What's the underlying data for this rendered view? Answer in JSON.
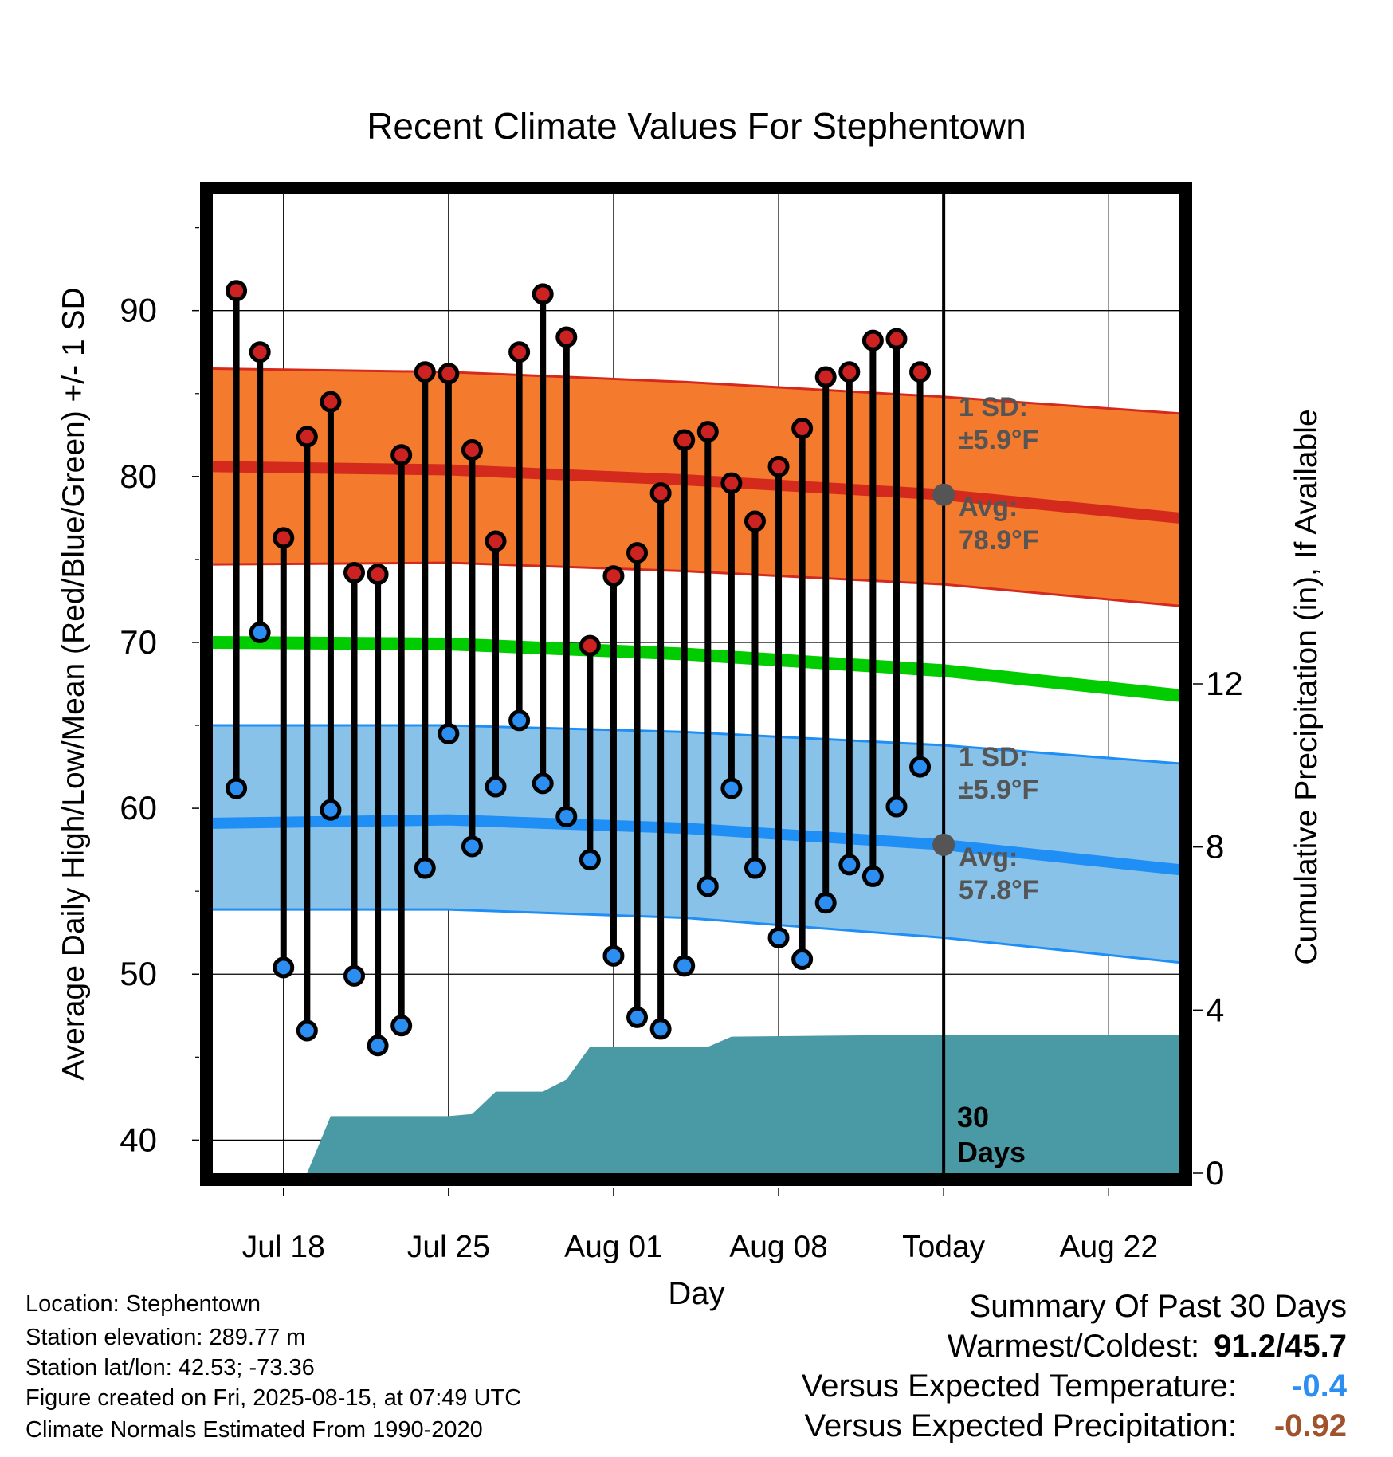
{
  "chart_data": {
    "type": "line",
    "title": "Recent Climate Values For Stephentown",
    "xlabel": "Day",
    "ylabel": "Average Daily High/Low/Mean (Red/Blue/Green) +/- 1 SD",
    "ylabel_right": "Cumulative Precipitation (in), If Available",
    "x_range": [
      "2025-07-15",
      "2025-08-25"
    ],
    "ylim": [
      38,
      97
    ],
    "ylim_right": [
      0,
      24
    ],
    "x_tick_labels": [
      {
        "date": "2025-07-18",
        "label": "Jul 18"
      },
      {
        "date": "2025-07-25",
        "label": "Jul 25"
      },
      {
        "date": "2025-08-01",
        "label": "Aug 01"
      },
      {
        "date": "2025-08-08",
        "label": "Aug 08"
      },
      {
        "date": "2025-08-15",
        "label": "Today"
      },
      {
        "date": "2025-08-22",
        "label": "Aug 22"
      }
    ],
    "y_ticks": [
      40,
      50,
      60,
      70,
      80,
      90
    ],
    "y_ticks_right": [
      0,
      4,
      8,
      12
    ],
    "grid": true,
    "daily_observations": {
      "dates": [
        "2025-07-16",
        "2025-07-17",
        "2025-07-18",
        "2025-07-19",
        "2025-07-20",
        "2025-07-21",
        "2025-07-22",
        "2025-07-23",
        "2025-07-24",
        "2025-07-25",
        "2025-07-26",
        "2025-07-27",
        "2025-07-28",
        "2025-07-29",
        "2025-07-30",
        "2025-07-31",
        "2025-08-01",
        "2025-08-02",
        "2025-08-03",
        "2025-08-04",
        "2025-08-05",
        "2025-08-06",
        "2025-08-07",
        "2025-08-08",
        "2025-08-09",
        "2025-08-10",
        "2025-08-11",
        "2025-08-12",
        "2025-08-13",
        "2025-08-14"
      ],
      "high": [
        91.2,
        87.5,
        76.3,
        82.4,
        84.5,
        74.2,
        74.1,
        81.3,
        86.3,
        86.2,
        81.6,
        76.1,
        87.5,
        91.0,
        88.4,
        69.8,
        74.0,
        75.4,
        79.0,
        82.2,
        82.7,
        79.6,
        77.3,
        80.6,
        82.9,
        86.0,
        86.3,
        88.2,
        88.3,
        86.3
      ],
      "low": [
        61.2,
        70.6,
        50.4,
        46.6,
        59.9,
        49.9,
        45.7,
        46.9,
        56.4,
        64.5,
        57.7,
        61.3,
        65.3,
        61.5,
        59.5,
        56.9,
        51.1,
        47.4,
        46.7,
        50.5,
        55.3,
        61.2,
        56.4,
        52.2,
        50.9,
        54.3,
        56.6,
        55.9,
        60.1,
        62.5
      ],
      "high_color": "#cc2222",
      "low_color": "#2b8ef0"
    },
    "normal_high": {
      "dates": [
        "2025-07-15",
        "2025-07-25",
        "2025-08-04",
        "2025-08-15",
        "2025-08-25"
      ],
      "avg": [
        80.6,
        80.4,
        79.8,
        78.9,
        77.5
      ],
      "upper": [
        86.5,
        86.3,
        85.7,
        84.8,
        83.8
      ],
      "lower": [
        74.7,
        74.8,
        74.3,
        73.5,
        72.2
      ],
      "band_color": "#f47a2e",
      "line_color": "#d42a1e"
    },
    "normal_low": {
      "dates": [
        "2025-07-15",
        "2025-07-25",
        "2025-08-04",
        "2025-08-15",
        "2025-08-25"
      ],
      "avg": [
        59.1,
        59.3,
        58.8,
        57.8,
        56.3
      ],
      "upper": [
        65.0,
        65.0,
        64.6,
        63.8,
        62.7
      ],
      "lower": [
        53.9,
        53.9,
        53.4,
        52.2,
        50.7
      ],
      "band_color": "#88c2e8",
      "line_color": "#1f8ff5"
    },
    "normal_mean": {
      "dates": [
        "2025-07-15",
        "2025-07-25",
        "2025-08-04",
        "2025-08-15",
        "2025-08-25"
      ],
      "values": [
        70.0,
        69.9,
        69.3,
        68.3,
        66.8
      ],
      "color": "#00cc00"
    },
    "cumulative_precip": {
      "dates": [
        "2025-07-19",
        "2025-07-20",
        "2025-07-25",
        "2025-07-26",
        "2025-07-27",
        "2025-07-29",
        "2025-07-30",
        "2025-07-31",
        "2025-08-05",
        "2025-08-06",
        "2025-08-15",
        "2025-08-25"
      ],
      "values": [
        0.0,
        1.4,
        1.4,
        1.45,
        2.0,
        2.0,
        2.3,
        3.1,
        3.1,
        3.35,
        3.4,
        3.4
      ],
      "color": "#4a9aa5"
    },
    "annotations": {
      "high_sd_label": "1 SD:",
      "high_sd_value": "±5.9°F",
      "high_avg_label": "Avg:",
      "high_avg_value": "78.9°F",
      "high_avg_today": 78.9,
      "low_sd_label": "1 SD:",
      "low_sd_value": "±5.9°F",
      "low_avg_label": "Avg:",
      "low_avg_value": "57.8°F",
      "low_avg_today": 57.8,
      "period_line1": "30",
      "period_line2": "Days"
    }
  },
  "station_info": {
    "location": "Location: Stephentown",
    "elevation": "Station elevation: 289.77 m",
    "latlon": "Station lat/lon: 42.53; -73.36",
    "created": "Figure created on Fri, 2025-08-15, at 07:49 UTC",
    "normals": "Climate Normals Estimated From 1990-2020"
  },
  "summary": {
    "heading": "Summary Of Past 30 Days",
    "warmest_coldest_label": "Warmest/Coldest:",
    "warmest_coldest_value": "91.2/45.7",
    "temp_label": "Versus Expected Temperature:",
    "temp_value": "-0.4",
    "temp_color": "#2b8ef0",
    "precip_label": "Versus Expected Precipitation:",
    "precip_value": "-0.92",
    "precip_color": "#a0522d"
  }
}
